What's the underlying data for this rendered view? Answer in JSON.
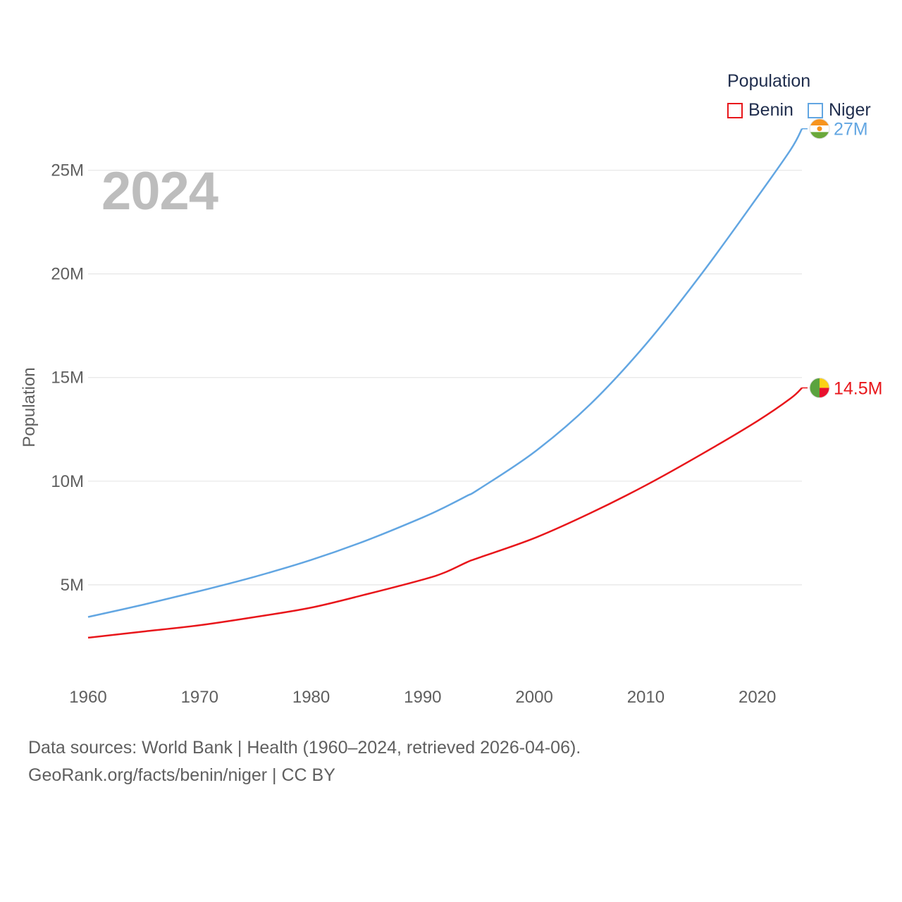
{
  "colors": {
    "benin": "#e8161b",
    "niger": "#62a6e2",
    "axis_text": "#5f5f5f",
    "grid": "#e6e6e6",
    "year": "#bdbdbd"
  },
  "legend": {
    "title": "Population",
    "items": [
      {
        "label": "Benin",
        "color": "#e8161b"
      },
      {
        "label": "Niger",
        "color": "#62a6e2"
      }
    ]
  },
  "year_label": "2024",
  "footer": {
    "line1": "Data sources: World Bank | Health (1960–2024, retrieved 2026-04-06).",
    "line2": "GeoRank.org/facts/benin/niger | CC BY"
  },
  "chart_data": {
    "type": "line",
    "title": "",
    "xlabel": "",
    "ylabel": "Population",
    "xlim": [
      1960,
      2024
    ],
    "ylim": [
      0,
      27500000
    ],
    "x_ticks": [
      1960,
      1970,
      1980,
      1990,
      2000,
      2010,
      2020
    ],
    "y_ticks": [
      5000000,
      10000000,
      15000000,
      20000000,
      25000000
    ],
    "y_tick_labels": [
      "5M",
      "10M",
      "15M",
      "20M",
      "25M"
    ],
    "grid": true,
    "legend_position": "top-right",
    "x": [
      1960,
      1965,
      1970,
      1975,
      1980,
      1985,
      1990,
      1992,
      1994,
      1995,
      2000,
      2005,
      2010,
      2015,
      2020,
      2023,
      2024
    ],
    "series": [
      {
        "name": "Benin",
        "color": "#e8161b",
        "end_label": "14.5M",
        "values": [
          2450000,
          2750000,
          3050000,
          3450000,
          3900000,
          4550000,
          5250000,
          5600000,
          6100000,
          6300000,
          7250000,
          8450000,
          9800000,
          11300000,
          12900000,
          14000000,
          14500000
        ]
      },
      {
        "name": "Niger",
        "color": "#62a6e2",
        "end_label": "27M",
        "values": [
          3450000,
          4050000,
          4700000,
          5400000,
          6200000,
          7150000,
          8250000,
          8750000,
          9300000,
          9600000,
          11400000,
          13700000,
          16600000,
          20000000,
          23700000,
          26000000,
          27000000
        ]
      }
    ]
  }
}
